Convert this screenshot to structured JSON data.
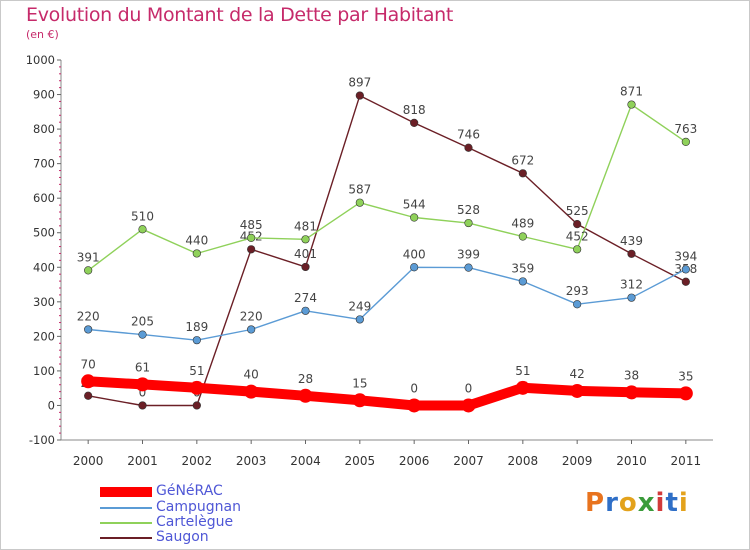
{
  "header": {
    "title": "Evolution du Montant de la Dette par Habitant",
    "unit": "(en €)"
  },
  "chart_data": {
    "type": "line",
    "title": "Evolution du Montant de la Dette par Habitant",
    "subtitle": "(en €)",
    "categories": [
      "2000",
      "2001",
      "2002",
      "2003",
      "2004",
      "2005",
      "2006",
      "2007",
      "2008",
      "2009",
      "2010",
      "2011"
    ],
    "ylim": [
      -100,
      1000
    ],
    "yticks": [
      -100,
      0,
      100,
      200,
      300,
      400,
      500,
      600,
      700,
      800,
      900,
      1000
    ],
    "grid": false,
    "legend_position": "bottom-left",
    "series": [
      {
        "name": "Saugon",
        "color": "#6b1f26",
        "values": [
          28,
          0,
          0,
          452,
          401,
          897,
          818,
          746,
          672,
          525,
          439,
          358
        ],
        "labels": [
          "28",
          "0",
          "0",
          "452",
          "401",
          "897",
          "818",
          "746",
          "672",
          "525",
          "439",
          "358"
        ]
      },
      {
        "name": "Cartelègue",
        "color": "#8fd15a",
        "values": [
          391,
          510,
          440,
          485,
          481,
          587,
          544,
          528,
          489,
          452,
          871,
          763
        ],
        "labels": [
          "391",
          "510",
          "440",
          "485",
          "481",
          "587",
          "544",
          "528",
          "489",
          "452",
          "871",
          "763"
        ]
      },
      {
        "name": "Campugnan",
        "color": "#5b9bd5",
        "values": [
          220,
          205,
          189,
          220,
          274,
          249,
          400,
          399,
          359,
          293,
          312,
          394
        ],
        "labels": [
          "220",
          "205",
          "189",
          "220",
          "274",
          "249",
          "400",
          "399",
          "359",
          "293",
          "312",
          "394"
        ]
      },
      {
        "name": "GéNéRAC",
        "color": "#ff0000",
        "values": [
          70,
          61,
          51,
          40,
          28,
          15,
          0,
          0,
          51,
          42,
          38,
          35
        ],
        "labels": [
          "70",
          "61",
          "51",
          "40",
          "28",
          "15",
          "0",
          "0",
          "51",
          "42",
          "38",
          "35"
        ]
      }
    ]
  },
  "legend": {
    "items": [
      {
        "name": "GéNéRAC",
        "color": "#ff0000"
      },
      {
        "name": "Campugnan",
        "color": "#5b9bd5"
      },
      {
        "name": "Cartelègue",
        "color": "#8fd15a"
      },
      {
        "name": "Saugon",
        "color": "#6b1f26"
      }
    ]
  },
  "logo": {
    "text": "Proxiti",
    "letter_colors": [
      "#e8731e",
      "#2f6fc7",
      "#e3a21c",
      "#3a9b3a",
      "#d23a3a",
      "#2f6fc7",
      "#e3a21c"
    ]
  }
}
